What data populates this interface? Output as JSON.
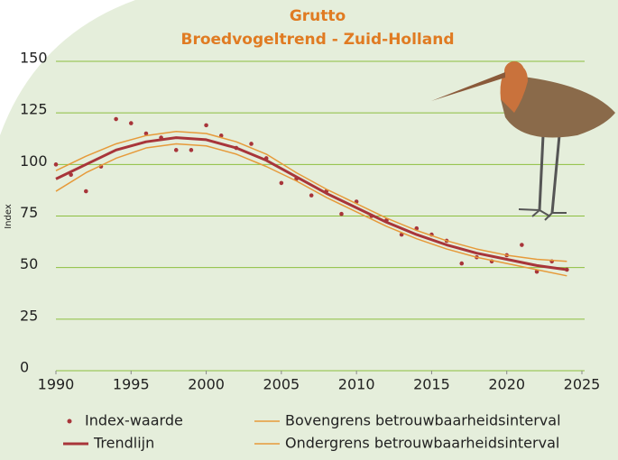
{
  "chart_data": {
    "type": "line",
    "title": "Grutto",
    "subtitle": "Broedvogeltrend - Zuid-Holland",
    "y_label": "Index",
    "xlim": [
      1990,
      2025
    ],
    "xticks": [
      1990,
      1995,
      2000,
      2005,
      2010,
      2015,
      2020,
      2025
    ],
    "ylim": [
      0,
      150
    ],
    "yticks": [
      0,
      25,
      50,
      75,
      100,
      125,
      150
    ],
    "grid": true,
    "series": [
      {
        "name": "Index-waarde",
        "color": "#a8353a",
        "style": "points",
        "x": [
          1990,
          1991,
          1992,
          1993,
          1994,
          1995,
          1996,
          1997,
          1998,
          1999,
          2000,
          2001,
          2002,
          2003,
          2004,
          2005,
          2006,
          2007,
          2008,
          2009,
          2010,
          2011,
          2012,
          2013,
          2014,
          2015,
          2016,
          2017,
          2018,
          2019,
          2020,
          2021,
          2022,
          2023,
          2024
        ],
        "values": [
          100,
          95,
          87,
          99,
          122,
          120,
          115,
          113,
          107,
          107,
          119,
          114,
          108,
          110,
          103,
          91,
          93,
          85,
          87,
          76,
          82,
          75,
          73,
          66,
          69,
          66,
          63,
          52,
          55,
          53,
          56,
          61,
          48,
          53,
          49
        ]
      },
      {
        "name": "Trendlijn",
        "color": "#a8353a",
        "style": "thick",
        "x": [
          1990,
          1992,
          1994,
          1996,
          1998,
          2000,
          2002,
          2004,
          2006,
          2008,
          2010,
          2012,
          2014,
          2016,
          2018,
          2020,
          2022,
          2024
        ],
        "values": [
          93,
          100,
          107,
          111,
          113,
          112,
          108,
          102,
          94,
          86,
          79,
          72,
          66,
          61,
          57,
          54,
          51,
          49
        ]
      },
      {
        "name": "Bovengrens betrouwbaarheidsinterval",
        "color": "#e69a3a",
        "style": "thin",
        "x": [
          1990,
          1992,
          1994,
          1996,
          1998,
          2000,
          2002,
          2004,
          2006,
          2008,
          2010,
          2012,
          2014,
          2016,
          2018,
          2020,
          2022,
          2024
        ],
        "values": [
          97,
          104,
          110,
          114,
          116,
          115,
          111,
          105,
          96,
          88,
          81,
          74,
          68,
          63,
          59,
          56,
          54,
          53
        ]
      },
      {
        "name": "Ondergrens betrouwbaarheidsinterval",
        "color": "#e69a3a",
        "style": "thin",
        "x": [
          1990,
          1992,
          1994,
          1996,
          1998,
          2000,
          2002,
          2004,
          2006,
          2008,
          2010,
          2012,
          2014,
          2016,
          2018,
          2020,
          2022,
          2024
        ],
        "values": [
          87,
          96,
          103,
          108,
          110,
          109,
          105,
          99,
          92,
          84,
          77,
          70,
          64,
          59,
          55,
          52,
          49,
          46
        ]
      }
    ]
  }
}
